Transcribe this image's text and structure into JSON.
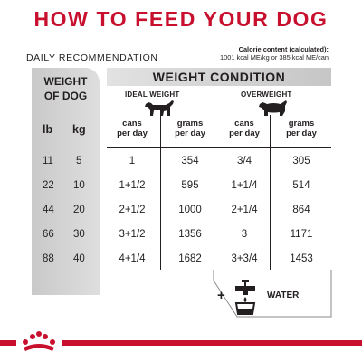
{
  "header": {
    "title": "HOW TO FEED YOUR DOG",
    "daily": "DAILY RECOMMENDATION",
    "calorie_title": "Calorie content (calculated):",
    "calorie_text": "1001 kcal ME/kg or 385 kcal ME/can"
  },
  "weight_block": {
    "title_line1": "WEIGHT",
    "title_line2": "OF DOG",
    "col_lb": "lb",
    "col_kg": "kg"
  },
  "condition": {
    "title": "WEIGHT CONDITION",
    "ideal": "IDEAL WEIGHT",
    "over": "OVERWEIGHT",
    "cans_line1": "cans",
    "cans_line2": "per day",
    "grams_line1": "grams",
    "grams_line2": "per day"
  },
  "rows": [
    {
      "lb": "11",
      "kg": "5",
      "ideal_cans": "1",
      "ideal_grams": "354",
      "over_cans": "3/4",
      "over_grams": "305"
    },
    {
      "lb": "22",
      "kg": "10",
      "ideal_cans": "1+1/2",
      "ideal_grams": "595",
      "over_cans": "1+1/4",
      "over_grams": "514"
    },
    {
      "lb": "44",
      "kg": "20",
      "ideal_cans": "2+1/2",
      "ideal_grams": "1000",
      "over_cans": "2+1/4",
      "over_grams": "864"
    },
    {
      "lb": "66",
      "kg": "30",
      "ideal_cans": "3+1/2",
      "ideal_grams": "1356",
      "over_cans": "3",
      "over_grams": "1171"
    },
    {
      "lb": "88",
      "kg": "40",
      "ideal_cans": "4+1/4",
      "ideal_grams": "1682",
      "over_cans": "3+3/4",
      "over_grams": "1453"
    }
  ],
  "water": {
    "plus": "+",
    "label": "WATER"
  },
  "colors": {
    "brand_red": "#c8102e",
    "text": "#231f20",
    "gray": "#d4d4d4"
  },
  "icons": [
    "dog-ideal-icon",
    "dog-overweight-icon",
    "water-faucet-icon",
    "royal-canin-crown-icon"
  ]
}
